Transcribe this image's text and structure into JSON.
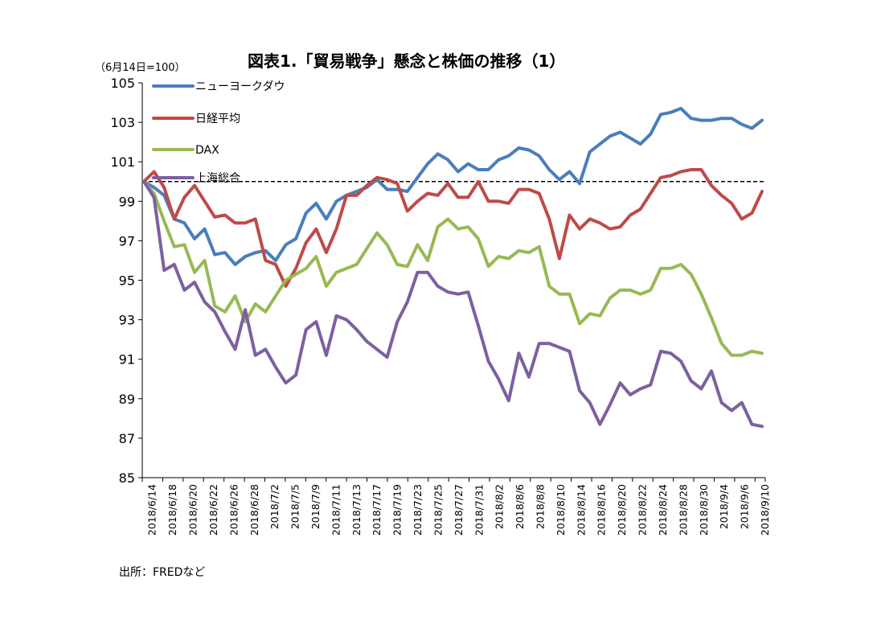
{
  "chart_data": {
    "type": "line",
    "title": "図表1.「貿易戦争」懸念と株価の推移（1）",
    "ylabel": "（6月14日=100）",
    "source": "出所：FREDなど",
    "ylim": [
      85,
      105
    ],
    "yticks": [
      85,
      87,
      89,
      91,
      93,
      95,
      97,
      99,
      101,
      103,
      105
    ],
    "reference_line": 100,
    "x_labels": [
      "2018/6/14",
      "2018/6/18",
      "2018/6/20",
      "2018/6/22",
      "2018/6/26",
      "2018/6/28",
      "2018/7/2",
      "2018/7/5",
      "2018/7/9",
      "2018/7/11",
      "2018/7/13",
      "2018/7/17",
      "2018/7/19",
      "2018/7/23",
      "2018/7/25",
      "2018/7/27",
      "2018/7/31",
      "2018/8/2",
      "2018/8/6",
      "2018/8/8",
      "2018/8/10",
      "2018/8/14",
      "2018/8/16",
      "2018/8/20",
      "2018/8/22",
      "2018/8/24",
      "2018/8/28",
      "2018/8/30",
      "2018/9/4",
      "2018/9/6",
      "2018/9/10"
    ],
    "series": [
      {
        "name": "ニューヨークダウ",
        "color": "#4a7ebb",
        "values": [
          100,
          99.7,
          99.3,
          98.1,
          97.9,
          97.1,
          97.6,
          96.3,
          96.4,
          95.8,
          96.2,
          96.4,
          96.5,
          96.0,
          96.8,
          97.1,
          98.4,
          98.9,
          98.1,
          99.0,
          99.3,
          99.5,
          99.7,
          100.1,
          99.6,
          99.6,
          99.5,
          100.2,
          100.9,
          101.4,
          101.1,
          100.5,
          100.9,
          100.6,
          100.6,
          101.1,
          101.3,
          101.7,
          101.6,
          101.3,
          100.6,
          100.1,
          100.5,
          99.9,
          101.5,
          101.9,
          102.3,
          102.5,
          102.2,
          101.9,
          102.4,
          103.4,
          103.5,
          103.7,
          103.2,
          103.1,
          103.1,
          103.2,
          103.2,
          102.9,
          102.7,
          103.1
        ]
      },
      {
        "name": "日経平均",
        "color": "#be4b48",
        "values": [
          100,
          100.5,
          99.7,
          98.1,
          99.2,
          99.8,
          99.0,
          98.2,
          98.3,
          97.9,
          97.9,
          98.1,
          96.0,
          95.8,
          94.7,
          95.6,
          96.9,
          97.6,
          96.4,
          97.6,
          99.3,
          99.3,
          99.8,
          100.2,
          100.1,
          99.9,
          98.5,
          99.0,
          99.4,
          99.3,
          99.9,
          99.2,
          99.2,
          100.0,
          99.0,
          99.0,
          98.9,
          99.6,
          99.6,
          99.4,
          98.1,
          96.1,
          98.3,
          97.6,
          98.1,
          97.9,
          97.6,
          97.7,
          98.3,
          98.6,
          99.4,
          100.2,
          100.3,
          100.5,
          100.6,
          100.6,
          99.8,
          99.3,
          98.9,
          98.1,
          98.4,
          99.5
        ]
      },
      {
        "name": "DAX",
        "color": "#98b954",
        "values": [
          100,
          99.4,
          98.0,
          96.7,
          96.8,
          95.4,
          96.0,
          93.7,
          93.4,
          94.2,
          92.9,
          93.8,
          93.4,
          94.2,
          95.0,
          95.3,
          95.6,
          96.2,
          94.7,
          95.4,
          95.6,
          95.8,
          96.6,
          97.4,
          96.8,
          95.8,
          95.7,
          96.8,
          96.0,
          97.7,
          98.1,
          97.6,
          97.7,
          97.1,
          95.7,
          96.2,
          96.1,
          96.5,
          96.4,
          96.7,
          94.7,
          94.3,
          94.3,
          92.8,
          93.3,
          93.2,
          94.1,
          94.5,
          94.5,
          94.3,
          94.5,
          95.6,
          95.6,
          95.8,
          95.3,
          94.3,
          93.1,
          91.8,
          91.2,
          91.2,
          91.4,
          91.3
        ]
      },
      {
        "name": "上海総合",
        "color": "#7d60a0",
        "values": [
          100,
          99.2,
          95.5,
          95.8,
          94.5,
          94.9,
          93.9,
          93.4,
          92.4,
          91.5,
          93.5,
          91.2,
          91.5,
          90.6,
          89.8,
          90.2,
          92.5,
          92.9,
          91.2,
          93.2,
          93.0,
          92.5,
          91.9,
          91.5,
          91.1,
          92.9,
          93.9,
          95.4,
          95.4,
          94.7,
          94.4,
          94.3,
          94.4,
          92.7,
          90.9,
          90.0,
          88.9,
          91.3,
          90.1,
          91.8,
          91.8,
          91.6,
          91.4,
          89.4,
          88.8,
          87.7,
          88.7,
          89.8,
          89.2,
          89.5,
          89.7,
          91.4,
          91.3,
          90.9,
          89.9,
          89.5,
          90.4,
          88.8,
          88.4,
          88.8,
          87.7,
          87.6
        ]
      }
    ]
  }
}
